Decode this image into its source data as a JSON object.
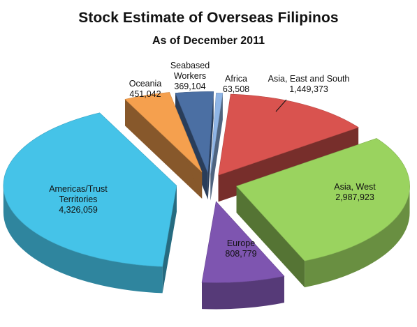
{
  "chart_data": {
    "type": "pie",
    "title": "Stock Estimate of Overseas Filipinos",
    "subtitle": "As of December 2011",
    "slices": [
      {
        "label": [
          "Asia, East and South"
        ],
        "value": 1449373,
        "value_label": "1,449,373",
        "color": "#d9534f"
      },
      {
        "label": [
          "Asia, West"
        ],
        "value": 2987923,
        "value_label": "2,987,923",
        "color": "#9ad35f"
      },
      {
        "label": [
          "Europe"
        ],
        "value": 808779,
        "value_label": "808,779",
        "color": "#7e55b0"
      },
      {
        "label": [
          "Americas/Trust",
          "Territories"
        ],
        "value": 4326059,
        "value_label": "4,326,059",
        "color": "#45c3e8"
      },
      {
        "label": [
          "Oceania"
        ],
        "value": 451042,
        "value_label": "451,042",
        "color": "#f5a04e"
      },
      {
        "label": [
          "Seabased",
          "Workers"
        ],
        "value": 369104,
        "value_label": "369,104",
        "color": "#4b6fa3"
      },
      {
        "label": [
          "Africa"
        ],
        "value": 63508,
        "value_label": "63,508",
        "color": "#8fb5e6"
      }
    ]
  }
}
